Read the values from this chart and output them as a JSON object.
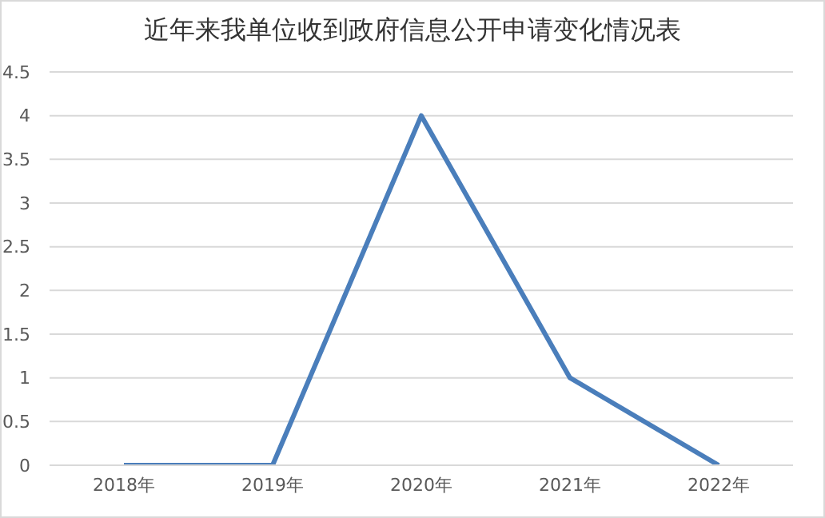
{
  "chart_data": {
    "type": "line",
    "title": "近年来我单位收到政府信息公开申请变化情况表",
    "categories": [
      "2018年",
      "2019年",
      "2020年",
      "2021年",
      "2022年"
    ],
    "series": [
      {
        "color": "#4a7ebb",
        "values": [
          0,
          0,
          4,
          1,
          0
        ]
      }
    ],
    "ylim": [
      0,
      4.5
    ],
    "yticks": [
      0,
      0.5,
      1,
      1.5,
      2,
      2.5,
      3,
      3.5,
      4,
      4.5
    ],
    "grid": "y",
    "legend": false,
    "marker": "none",
    "line_style": "solid"
  }
}
